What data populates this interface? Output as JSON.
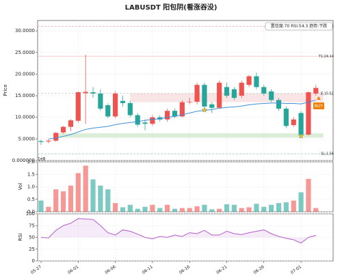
{
  "chart_data": {
    "type": "candlestick",
    "title": "LABUSDT   阳包阴(看涨吞没)",
    "ylabel": "Price",
    "categories": [
      "05-27",
      null,
      null,
      null,
      null,
      "06-01",
      null,
      null,
      null,
      null,
      "06-06",
      null,
      null,
      null,
      null,
      "06-11",
      null,
      null,
      null,
      null,
      "06-16",
      null,
      null,
      null,
      null,
      "06-21",
      null,
      null,
      null,
      null,
      "06-26",
      null,
      null,
      null,
      null,
      "07-01",
      null,
      null
    ],
    "open": [
      4.5,
      4.4,
      4.6,
      6.5,
      7.8,
      9.2,
      15.6,
      15.8,
      15.5,
      12.8,
      10.2,
      13.8,
      13.3,
      10.5,
      8.8,
      8.5,
      10.0,
      9.5,
      11.5,
      10.2,
      13.5,
      13.6,
      17.5,
      13.0,
      12.2,
      17.0,
      16.5,
      15.0,
      17.5,
      19.5,
      17.0,
      16.0,
      14.0,
      12.0,
      8.2,
      11.0,
      6.0,
      15.5
    ],
    "high": [
      4.8,
      4.9,
      6.6,
      8.0,
      9.6,
      16.0,
      24.5,
      17.0,
      16.5,
      13.2,
      16.0,
      15.0,
      13.8,
      11.0,
      9.5,
      10.5,
      10.5,
      12.0,
      12.0,
      14.0,
      14.5,
      18.0,
      18.0,
      13.5,
      18.5,
      18.0,
      17.0,
      18.5,
      19.8,
      20.3,
      17.5,
      16.5,
      14.5,
      12.5,
      10.0,
      11.5,
      16.0,
      17.5
    ],
    "low": [
      3.6,
      4.0,
      4.3,
      6.2,
      6.8,
      8.8,
      8.5,
      14.5,
      11.5,
      9.8,
      9.8,
      12.5,
      10.0,
      7.8,
      7.0,
      8.0,
      9.0,
      9.0,
      9.8,
      10.0,
      13.0,
      13.0,
      12.0,
      11.0,
      12.0,
      14.5,
      14.0,
      14.5,
      17.0,
      16.5,
      15.0,
      13.5,
      11.5,
      7.5,
      7.8,
      5.8,
      5.8,
      15.0
    ],
    "close": [
      4.3,
      4.6,
      6.4,
      7.8,
      9.3,
      15.8,
      15.9,
      15.5,
      12.0,
      10.2,
      15.5,
      13.3,
      10.5,
      8.3,
      8.5,
      10.0,
      9.5,
      11.5,
      10.2,
      13.5,
      13.6,
      17.5,
      12.5,
      12.2,
      18.0,
      15.0,
      14.5,
      18.0,
      19.5,
      17.0,
      15.5,
      14.0,
      12.0,
      8.0,
      9.5,
      6.0,
      15.8,
      16.8
    ],
    "colors": {
      "up": "#ef5350",
      "down": "#26a69a"
    },
    "ylim": [
      0,
      32.4
    ],
    "yticks": [
      {
        "value": 0,
        "label": "0.000000"
      },
      {
        "value": 5,
        "label": "5.0000"
      },
      {
        "value": 10,
        "label": "10.0000"
      },
      {
        "value": 15,
        "label": "15.0000"
      },
      {
        "value": 20,
        "label": "20.0000"
      },
      {
        "value": 25,
        "label": "25.0000"
      },
      {
        "value": 30,
        "label": "30.0000"
      }
    ],
    "grid": true,
    "ma": {
      "color": "#3d8fd6",
      "values": [
        null,
        5.0,
        5.2,
        5.6,
        6.0,
        6.6,
        7.2,
        7.5,
        7.7,
        7.9,
        8.3,
        8.6,
        8.8,
        9.0,
        9.3,
        9.5,
        9.7,
        10.0,
        10.2,
        10.6,
        11.0,
        11.4,
        11.6,
        11.8,
        12.1,
        12.3,
        12.4,
        12.6,
        12.9,
        13.1,
        13.2,
        13.3,
        13.3,
        13.2,
        13.2,
        13.1,
        13.5,
        14.0
      ]
    },
    "zones": [
      {
        "range": [
          5.3,
          6.3
        ],
        "color": "#cfe8cf"
      },
      {
        "range": [
          13.5,
          15.5
        ],
        "color": "#f8dede"
      }
    ],
    "levels": [
      {
        "value": 31.06,
        "label": "R:31.06",
        "color": "#f08080"
      },
      {
        "value": 24.14,
        "label": "T1:24.14",
        "color": "#f4a0a0"
      },
      {
        "value": 15.52,
        "label": "E:15.52",
        "color": "#999999"
      },
      {
        "value": 1.56,
        "label": "SL:1.56",
        "color": "#5fb88a"
      }
    ],
    "info": "置信度:70  RSI:54.3  趋势:下跌",
    "signal": "BUY",
    "volume": {
      "ylabel": "Vol",
      "unit": "1e8",
      "ylim": [
        0,
        2
      ],
      "yticks": [
        {
          "value": 0,
          "label": "0.0"
        },
        0.5,
        {
          "value": 1,
          "label": "1.0"
        },
        1.5,
        {
          "value": 2,
          "label": "2.0"
        }
      ],
      "values": [
        0.45,
        0.2,
        0.9,
        0.82,
        1.05,
        1.55,
        1.85,
        1.3,
        1.05,
        0.9,
        0.35,
        0.18,
        0.28,
        0.12,
        0.2,
        0.28,
        0.15,
        0.28,
        0.12,
        0.15,
        0.15,
        0.22,
        0.28,
        0.1,
        0.12,
        0.3,
        0.28,
        0.15,
        0.18,
        0.32,
        0.2,
        0.28,
        0.35,
        0.38,
        0.45,
        0.78,
        1.32,
        0.15
      ]
    },
    "rsi": {
      "ylabel": "RSI",
      "color": "#b25cc8",
      "ylim": [
        0,
        100
      ],
      "yticks": [
        0,
        25,
        50,
        75,
        100
      ],
      "fill_base": 50,
      "values": [
        50,
        49,
        65,
        75,
        80,
        90,
        89,
        88,
        75,
        60,
        55,
        66,
        63,
        57,
        50,
        47,
        52,
        50,
        55,
        52,
        60,
        58,
        65,
        55,
        55,
        63,
        58,
        56,
        60,
        63,
        66,
        58,
        52,
        48,
        45,
        38,
        50,
        54.3
      ]
    }
  }
}
